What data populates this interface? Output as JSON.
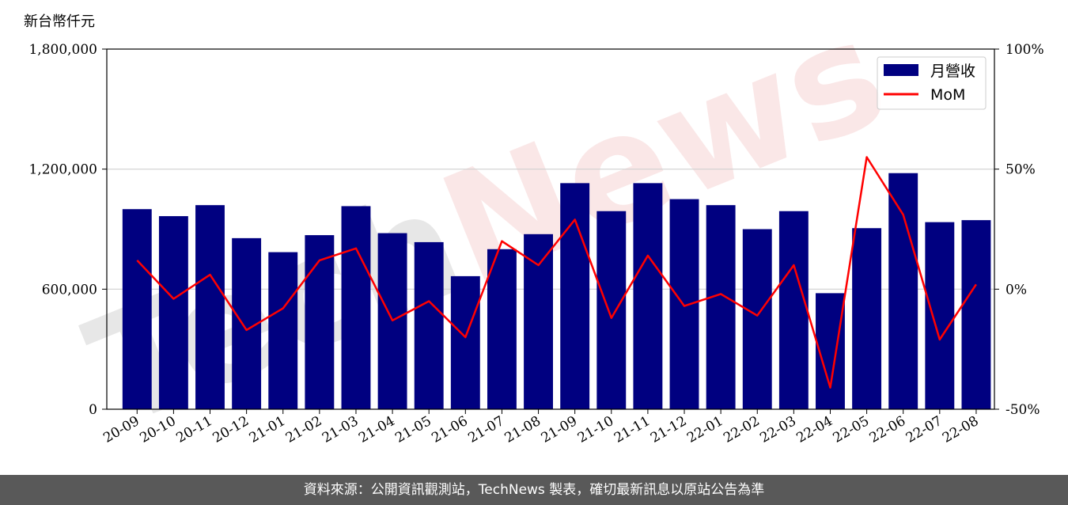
{
  "chart_data": {
    "type": "bar",
    "unit_label": "新台幣仟元",
    "categories": [
      "20-09",
      "20-10",
      "20-11",
      "20-12",
      "21-01",
      "21-02",
      "21-03",
      "21-04",
      "21-05",
      "21-06",
      "21-07",
      "21-08",
      "21-09",
      "21-10",
      "21-11",
      "21-12",
      "22-01",
      "22-02",
      "22-03",
      "22-04",
      "22-05",
      "22-06",
      "22-07",
      "22-08"
    ],
    "series": [
      {
        "name": "月營收",
        "type": "bar",
        "axis": "left",
        "color": "#000080",
        "values": [
          1000000,
          965000,
          1020000,
          855000,
          785000,
          870000,
          1015000,
          880000,
          835000,
          665000,
          800000,
          875000,
          1130000,
          990000,
          1130000,
          1050000,
          1020000,
          900000,
          990000,
          580000,
          905000,
          1180000,
          935000,
          945000
        ]
      },
      {
        "name": "MoM",
        "type": "line",
        "axis": "right",
        "color": "#ff0000",
        "values": [
          0.12,
          -0.04,
          0.06,
          -0.17,
          -0.08,
          0.12,
          0.17,
          -0.13,
          -0.05,
          -0.2,
          0.2,
          0.1,
          0.29,
          -0.12,
          0.14,
          -0.07,
          -0.02,
          -0.11,
          0.1,
          -0.41,
          0.55,
          0.31,
          -0.21,
          0.02
        ]
      }
    ],
    "y_left": {
      "min": 0,
      "max": 1800000,
      "ticks": [
        0,
        600000,
        1200000,
        1800000
      ],
      "tick_labels": [
        "0",
        "600,000",
        "1,200,000",
        "1,800,000"
      ]
    },
    "y_right": {
      "min": -0.5,
      "max": 1.0,
      "ticks": [
        -0.5,
        0,
        0.5,
        1.0
      ],
      "tick_labels": [
        "-50%",
        "0%",
        "50%",
        "100%"
      ]
    },
    "grid": "horizontal",
    "legend_position": "top-right"
  },
  "watermark": "TechNews",
  "footer": "資料來源：公開資訊觀測站，TechNews 製表，確切最新訊息以原站公告為準"
}
